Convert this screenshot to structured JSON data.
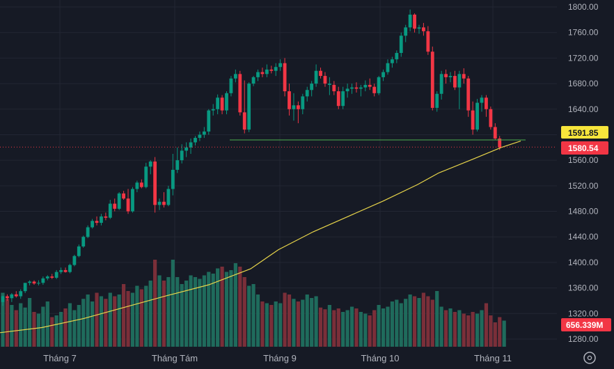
{
  "chart_data": {
    "type": "candlestick",
    "y_axis": {
      "min": 1260,
      "max": 1810,
      "ticks": [
        "1800.00",
        "1760.00",
        "1720.00",
        "1680.00",
        "1640.00",
        "1600.00",
        "1560.00",
        "1520.00",
        "1480.00",
        "1440.00",
        "1400.00",
        "1360.00",
        "1320.00",
        "1280.00"
      ]
    },
    "x_axis": {
      "labels": [
        "Tháng 7",
        "Tháng Tám",
        "Tháng 9",
        "Tháng 10",
        "Tháng 11"
      ]
    },
    "horizontal_line": {
      "value": 1591.85,
      "label": "1591.85",
      "color": "#4caf50"
    },
    "last_price": {
      "value": 1580.54,
      "label": "1580.54",
      "color": "#f23645"
    },
    "volume_label": {
      "label": "656.339M",
      "color": "#f23645"
    },
    "ma_label_color": "#f7e53b",
    "colors": {
      "up": "#089981",
      "down": "#f23645",
      "vol_up": "#1f6b5c",
      "vol_down": "#7a2f39",
      "ma": "#e8d54a"
    },
    "candles": [
      [
        1338,
        1348,
        1332,
        1347,
        1
      ],
      [
        1347,
        1350,
        1340,
        1344,
        0
      ],
      [
        1344,
        1352,
        1338,
        1350,
        1
      ],
      [
        1350,
        1355,
        1345,
        1347,
        0
      ],
      [
        1347,
        1358,
        1343,
        1355,
        1
      ],
      [
        1355,
        1364,
        1352,
        1368,
        1
      ],
      [
        1368,
        1372,
        1364,
        1370,
        1
      ],
      [
        1370,
        1372,
        1365,
        1367,
        0
      ],
      [
        1367,
        1372,
        1364,
        1368,
        1
      ],
      [
        1368,
        1378,
        1365,
        1375,
        1
      ],
      [
        1375,
        1380,
        1372,
        1378,
        1
      ],
      [
        1378,
        1382,
        1374,
        1376,
        0
      ],
      [
        1376,
        1388,
        1374,
        1385,
        1
      ],
      [
        1385,
        1392,
        1382,
        1388,
        1
      ],
      [
        1388,
        1392,
        1384,
        1385,
        0
      ],
      [
        1385,
        1398,
        1383,
        1396,
        1
      ],
      [
        1396,
        1412,
        1394,
        1410,
        1
      ],
      [
        1410,
        1428,
        1408,
        1425,
        1
      ],
      [
        1425,
        1442,
        1423,
        1440,
        1
      ],
      [
        1440,
        1458,
        1438,
        1455,
        1
      ],
      [
        1455,
        1468,
        1453,
        1465,
        1
      ],
      [
        1465,
        1472,
        1458,
        1462,
        0
      ],
      [
        1462,
        1476,
        1458,
        1472,
        1
      ],
      [
        1472,
        1478,
        1466,
        1470,
        0
      ],
      [
        1470,
        1498,
        1468,
        1492,
        1
      ],
      [
        1492,
        1500,
        1480,
        1484,
        0
      ],
      [
        1484,
        1510,
        1482,
        1508,
        1
      ],
      [
        1508,
        1512,
        1498,
        1500,
        0
      ],
      [
        1500,
        1515,
        1476,
        1480,
        0
      ],
      [
        1480,
        1518,
        1478,
        1515,
        1
      ],
      [
        1515,
        1528,
        1510,
        1525,
        1
      ],
      [
        1525,
        1530,
        1516,
        1518,
        0
      ],
      [
        1518,
        1556,
        1516,
        1550,
        1
      ],
      [
        1550,
        1560,
        1538,
        1558,
        1
      ],
      [
        1558,
        1565,
        1478,
        1490,
        0
      ],
      [
        1490,
        1500,
        1482,
        1495,
        1
      ],
      [
        1495,
        1510,
        1486,
        1490,
        0
      ],
      [
        1490,
        1520,
        1488,
        1515,
        1
      ],
      [
        1515,
        1570,
        1505,
        1545,
        1
      ],
      [
        1545,
        1580,
        1540,
        1560,
        1
      ],
      [
        1560,
        1585,
        1555,
        1575,
        1
      ],
      [
        1575,
        1588,
        1565,
        1580,
        1
      ],
      [
        1580,
        1594,
        1570,
        1588,
        1
      ],
      [
        1588,
        1598,
        1583,
        1595,
        1
      ],
      [
        1595,
        1605,
        1590,
        1600,
        1
      ],
      [
        1600,
        1612,
        1595,
        1605,
        1
      ],
      [
        1605,
        1640,
        1600,
        1638,
        1
      ],
      [
        1638,
        1648,
        1630,
        1640,
        1
      ],
      [
        1640,
        1663,
        1632,
        1658,
        1
      ],
      [
        1658,
        1662,
        1632,
        1638,
        0
      ],
      [
        1638,
        1668,
        1632,
        1665,
        1
      ],
      [
        1665,
        1692,
        1660,
        1688,
        1
      ],
      [
        1688,
        1702,
        1682,
        1695,
        1
      ],
      [
        1695,
        1700,
        1630,
        1635,
        0
      ],
      [
        1635,
        1685,
        1602,
        1608,
        0
      ],
      [
        1608,
        1682,
        1604,
        1680,
        1
      ],
      [
        1680,
        1692,
        1676,
        1690,
        1
      ],
      [
        1690,
        1702,
        1684,
        1698,
        1
      ],
      [
        1698,
        1705,
        1690,
        1695,
        0
      ],
      [
        1695,
        1710,
        1690,
        1702,
        1
      ],
      [
        1702,
        1708,
        1696,
        1700,
        0
      ],
      [
        1700,
        1712,
        1692,
        1706,
        1
      ],
      [
        1706,
        1718,
        1700,
        1712,
        1
      ],
      [
        1712,
        1720,
        1660,
        1668,
        0
      ],
      [
        1668,
        1680,
        1630,
        1640,
        0
      ],
      [
        1640,
        1665,
        1622,
        1646,
        1
      ],
      [
        1646,
        1652,
        1618,
        1640,
        0
      ],
      [
        1640,
        1664,
        1632,
        1660,
        1
      ],
      [
        1660,
        1675,
        1652,
        1670,
        1
      ],
      [
        1670,
        1684,
        1660,
        1680,
        1
      ],
      [
        1680,
        1710,
        1675,
        1700,
        1
      ],
      [
        1700,
        1705,
        1688,
        1692,
        0
      ],
      [
        1692,
        1698,
        1675,
        1680,
        0
      ],
      [
        1680,
        1690,
        1662,
        1678,
        1
      ],
      [
        1678,
        1684,
        1662,
        1668,
        0
      ],
      [
        1668,
        1675,
        1640,
        1645,
        0
      ],
      [
        1645,
        1675,
        1640,
        1668,
        1
      ],
      [
        1668,
        1680,
        1658,
        1672,
        1
      ],
      [
        1672,
        1680,
        1664,
        1674,
        1
      ],
      [
        1674,
        1682,
        1666,
        1672,
        0
      ],
      [
        1672,
        1678,
        1660,
        1674,
        1
      ],
      [
        1674,
        1685,
        1668,
        1678,
        1
      ],
      [
        1678,
        1688,
        1670,
        1675,
        0
      ],
      [
        1675,
        1680,
        1660,
        1665,
        0
      ],
      [
        1665,
        1692,
        1662,
        1690,
        1
      ],
      [
        1690,
        1702,
        1684,
        1698,
        1
      ],
      [
        1698,
        1718,
        1694,
        1712,
        1
      ],
      [
        1712,
        1722,
        1705,
        1718,
        1
      ],
      [
        1718,
        1732,
        1712,
        1728,
        1
      ],
      [
        1728,
        1760,
        1722,
        1755,
        1
      ],
      [
        1755,
        1772,
        1745,
        1768,
        1
      ],
      [
        1768,
        1796,
        1762,
        1788,
        1
      ],
      [
        1788,
        1790,
        1760,
        1766,
        0
      ],
      [
        1766,
        1772,
        1758,
        1768,
        1
      ],
      [
        1768,
        1775,
        1755,
        1762,
        0
      ],
      [
        1762,
        1770,
        1725,
        1730,
        0
      ],
      [
        1730,
        1738,
        1638,
        1642,
        0
      ],
      [
        1642,
        1668,
        1636,
        1664,
        1
      ],
      [
        1664,
        1700,
        1655,
        1695,
        1
      ],
      [
        1695,
        1702,
        1680,
        1690,
        0
      ],
      [
        1690,
        1698,
        1682,
        1692,
        1
      ],
      [
        1692,
        1700,
        1670,
        1674,
        0
      ],
      [
        1674,
        1700,
        1640,
        1695,
        1
      ],
      [
        1695,
        1704,
        1680,
        1688,
        0
      ],
      [
        1688,
        1692,
        1628,
        1638,
        0
      ],
      [
        1638,
        1652,
        1600,
        1608,
        0
      ],
      [
        1608,
        1656,
        1605,
        1650,
        1
      ],
      [
        1650,
        1662,
        1636,
        1658,
        1
      ],
      [
        1658,
        1662,
        1628,
        1640,
        0
      ],
      [
        1640,
        1644,
        1608,
        1612,
        0
      ],
      [
        1612,
        1618,
        1592,
        1594,
        0
      ],
      [
        1594,
        1598,
        1576,
        1580,
        0
      ]
    ],
    "volume": [
      0.62,
      0.55,
      0.48,
      0.42,
      0.5,
      0.45,
      0.56,
      0.4,
      0.38,
      0.46,
      0.52,
      0.34,
      0.36,
      0.4,
      0.44,
      0.5,
      0.42,
      0.48,
      0.55,
      0.6,
      0.52,
      0.62,
      0.58,
      0.55,
      0.62,
      0.58,
      0.6,
      0.72,
      0.64,
      0.62,
      0.7,
      0.66,
      0.7,
      0.76,
      1.0,
      0.82,
      0.76,
      0.8,
      1.0,
      0.8,
      0.72,
      0.76,
      0.82,
      0.8,
      0.78,
      0.82,
      0.86,
      0.84,
      0.9,
      0.92,
      0.86,
      0.88,
      0.96,
      0.92,
      0.8,
      0.7,
      0.72,
      0.6,
      0.52,
      0.5,
      0.48,
      0.52,
      0.5,
      0.62,
      0.6,
      0.55,
      0.52,
      0.54,
      0.6,
      0.56,
      0.58,
      0.45,
      0.43,
      0.48,
      0.42,
      0.44,
      0.4,
      0.42,
      0.46,
      0.44,
      0.4,
      0.38,
      0.36,
      0.42,
      0.48,
      0.44,
      0.46,
      0.52,
      0.54,
      0.5,
      0.55,
      0.6,
      0.58,
      0.56,
      0.62,
      0.58,
      0.54,
      0.64,
      0.46,
      0.42,
      0.44,
      0.4,
      0.42,
      0.38,
      0.36,
      0.4,
      0.38,
      0.42,
      0.5,
      0.36,
      0.28,
      0.34,
      0.3
    ],
    "ma": [
      [
        0,
        1290
      ],
      [
        60,
        1298
      ],
      [
        120,
        1312
      ],
      [
        180,
        1330
      ],
      [
        240,
        1348
      ],
      [
        300,
        1365
      ],
      [
        360,
        1390
      ],
      [
        400,
        1420
      ],
      [
        450,
        1448
      ],
      [
        500,
        1472
      ],
      [
        550,
        1496
      ],
      [
        600,
        1522
      ],
      [
        630,
        1540
      ],
      [
        680,
        1562
      ],
      [
        720,
        1580
      ],
      [
        748,
        1590
      ]
    ]
  }
}
